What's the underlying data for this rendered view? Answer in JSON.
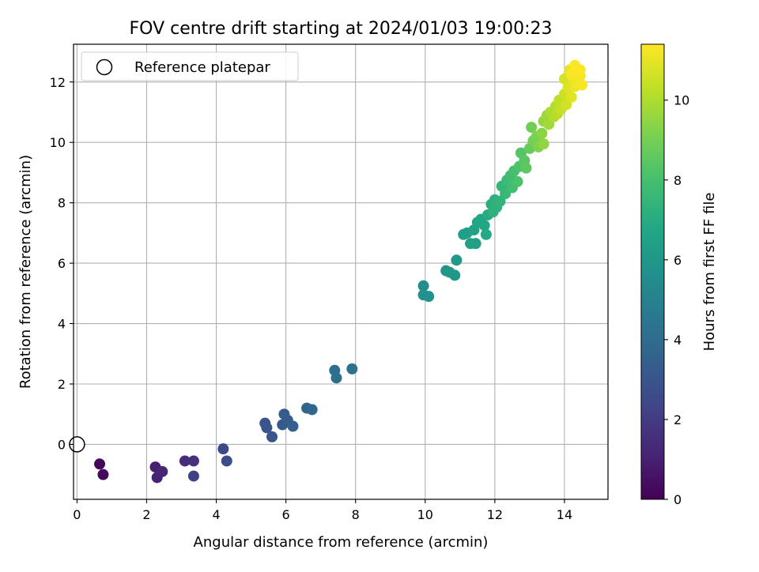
{
  "chart_data": {
    "type": "scatter",
    "title": "FOV centre drift starting at 2024/01/03 19:00:23",
    "xlabel": "Angular distance from reference (arcmin)",
    "ylabel": "Rotation from reference (arcmin)",
    "colorbar_label": "Hours from first FF file",
    "xlim": [
      -0.1,
      15.25
    ],
    "ylim": [
      -1.82,
      13.25
    ],
    "xticks": [
      "0",
      "2",
      "4",
      "6",
      "8",
      "10",
      "12",
      "14"
    ],
    "yticks": [
      "0",
      "2",
      "4",
      "6",
      "8",
      "10",
      "12"
    ],
    "colorbar_ticks": [
      "0",
      "2",
      "4",
      "6",
      "8",
      "10"
    ],
    "colorbar_range": [
      0,
      11.4
    ],
    "colormap": "viridis",
    "grid": true,
    "legend": {
      "position": "top-left",
      "label": "Reference platepar"
    },
    "reference_point": {
      "x": 0,
      "y": 0
    },
    "points": [
      {
        "x": 0.65,
        "y": -0.65,
        "t": 0.2
      },
      {
        "x": 0.75,
        "y": -1.0,
        "t": 0.3
      },
      {
        "x": 2.25,
        "y": -0.75,
        "t": 1.0
      },
      {
        "x": 2.3,
        "y": -1.1,
        "t": 1.1
      },
      {
        "x": 2.45,
        "y": -0.9,
        "t": 1.2
      },
      {
        "x": 3.1,
        "y": -0.55,
        "t": 1.5
      },
      {
        "x": 3.35,
        "y": -0.55,
        "t": 1.6
      },
      {
        "x": 3.35,
        "y": -1.05,
        "t": 2.2
      },
      {
        "x": 4.2,
        "y": -0.15,
        "t": 2.5
      },
      {
        "x": 4.3,
        "y": -0.55,
        "t": 2.6
      },
      {
        "x": 5.4,
        "y": 0.7,
        "t": 2.9
      },
      {
        "x": 5.45,
        "y": 0.55,
        "t": 3.0
      },
      {
        "x": 5.6,
        "y": 0.25,
        "t": 3.0
      },
      {
        "x": 5.9,
        "y": 0.65,
        "t": 3.2
      },
      {
        "x": 5.95,
        "y": 1.0,
        "t": 3.3
      },
      {
        "x": 6.05,
        "y": 0.8,
        "t": 3.3
      },
      {
        "x": 6.2,
        "y": 0.6,
        "t": 3.4
      },
      {
        "x": 6.6,
        "y": 1.2,
        "t": 3.7
      },
      {
        "x": 6.75,
        "y": 1.15,
        "t": 3.8
      },
      {
        "x": 7.4,
        "y": 2.45,
        "t": 4.1
      },
      {
        "x": 7.45,
        "y": 2.2,
        "t": 4.2
      },
      {
        "x": 7.9,
        "y": 2.5,
        "t": 4.3
      },
      {
        "x": 9.95,
        "y": 5.25,
        "t": 5.6
      },
      {
        "x": 9.95,
        "y": 4.95,
        "t": 5.7
      },
      {
        "x": 10.1,
        "y": 4.9,
        "t": 5.7
      },
      {
        "x": 10.6,
        "y": 5.75,
        "t": 5.9
      },
      {
        "x": 10.7,
        "y": 5.7,
        "t": 6.0
      },
      {
        "x": 10.85,
        "y": 5.6,
        "t": 6.0
      },
      {
        "x": 10.9,
        "y": 6.1,
        "t": 6.1
      },
      {
        "x": 11.1,
        "y": 6.95,
        "t": 6.4
      },
      {
        "x": 11.2,
        "y": 7.0,
        "t": 6.4
      },
      {
        "x": 11.3,
        "y": 6.65,
        "t": 6.5
      },
      {
        "x": 11.45,
        "y": 6.65,
        "t": 6.5
      },
      {
        "x": 11.4,
        "y": 7.1,
        "t": 6.6
      },
      {
        "x": 11.5,
        "y": 7.35,
        "t": 6.7
      },
      {
        "x": 11.6,
        "y": 7.45,
        "t": 6.8
      },
      {
        "x": 11.7,
        "y": 7.25,
        "t": 6.8
      },
      {
        "x": 11.75,
        "y": 6.95,
        "t": 6.9
      },
      {
        "x": 11.8,
        "y": 7.6,
        "t": 7.0
      },
      {
        "x": 11.9,
        "y": 7.95,
        "t": 7.1
      },
      {
        "x": 11.95,
        "y": 7.7,
        "t": 7.2
      },
      {
        "x": 12.0,
        "y": 8.1,
        "t": 7.3
      },
      {
        "x": 12.05,
        "y": 7.85,
        "t": 7.3
      },
      {
        "x": 12.15,
        "y": 8.05,
        "t": 7.4
      },
      {
        "x": 12.2,
        "y": 8.55,
        "t": 7.5
      },
      {
        "x": 12.3,
        "y": 8.3,
        "t": 7.6
      },
      {
        "x": 12.35,
        "y": 8.75,
        "t": 7.7
      },
      {
        "x": 12.45,
        "y": 8.9,
        "t": 7.8
      },
      {
        "x": 12.5,
        "y": 8.5,
        "t": 7.9
      },
      {
        "x": 12.55,
        "y": 9.05,
        "t": 8.0
      },
      {
        "x": 12.65,
        "y": 8.7,
        "t": 8.1
      },
      {
        "x": 12.7,
        "y": 9.2,
        "t": 8.2
      },
      {
        "x": 12.75,
        "y": 9.65,
        "t": 8.3
      },
      {
        "x": 12.85,
        "y": 9.4,
        "t": 8.4
      },
      {
        "x": 12.9,
        "y": 9.15,
        "t": 8.5
      },
      {
        "x": 13.0,
        "y": 9.8,
        "t": 8.7
      },
      {
        "x": 13.05,
        "y": 10.5,
        "t": 8.9
      },
      {
        "x": 13.1,
        "y": 10.05,
        "t": 9.0
      },
      {
        "x": 13.2,
        "y": 10.2,
        "t": 9.1
      },
      {
        "x": 13.25,
        "y": 9.85,
        "t": 9.2
      },
      {
        "x": 13.35,
        "y": 10.3,
        "t": 9.4
      },
      {
        "x": 13.4,
        "y": 9.95,
        "t": 9.5
      },
      {
        "x": 13.4,
        "y": 10.7,
        "t": 9.6
      },
      {
        "x": 13.5,
        "y": 10.9,
        "t": 9.7
      },
      {
        "x": 13.55,
        "y": 10.6,
        "t": 9.8
      },
      {
        "x": 13.6,
        "y": 11.0,
        "t": 9.9
      },
      {
        "x": 13.7,
        "y": 10.85,
        "t": 10.0
      },
      {
        "x": 13.75,
        "y": 11.2,
        "t": 10.1
      },
      {
        "x": 13.8,
        "y": 10.95,
        "t": 10.2
      },
      {
        "x": 13.85,
        "y": 11.4,
        "t": 10.3
      },
      {
        "x": 13.9,
        "y": 11.1,
        "t": 10.4
      },
      {
        "x": 14.0,
        "y": 11.6,
        "t": 10.5
      },
      {
        "x": 14.0,
        "y": 12.1,
        "t": 10.7
      },
      {
        "x": 14.05,
        "y": 11.25,
        "t": 10.6
      },
      {
        "x": 14.1,
        "y": 11.8,
        "t": 10.8
      },
      {
        "x": 14.15,
        "y": 12.4,
        "t": 11.0
      },
      {
        "x": 14.2,
        "y": 11.5,
        "t": 10.9
      },
      {
        "x": 14.25,
        "y": 12.1,
        "t": 11.1
      },
      {
        "x": 14.3,
        "y": 11.85,
        "t": 11.1
      },
      {
        "x": 14.35,
        "y": 12.3,
        "t": 11.2
      },
      {
        "x": 14.4,
        "y": 11.95,
        "t": 11.2
      },
      {
        "x": 14.45,
        "y": 12.2,
        "t": 11.3
      },
      {
        "x": 14.5,
        "y": 11.9,
        "t": 11.3
      },
      {
        "x": 14.45,
        "y": 12.4,
        "t": 11.4
      },
      {
        "x": 14.2,
        "y": 12.25,
        "t": 11.3
      },
      {
        "x": 14.3,
        "y": 12.55,
        "t": 11.4
      }
    ]
  }
}
